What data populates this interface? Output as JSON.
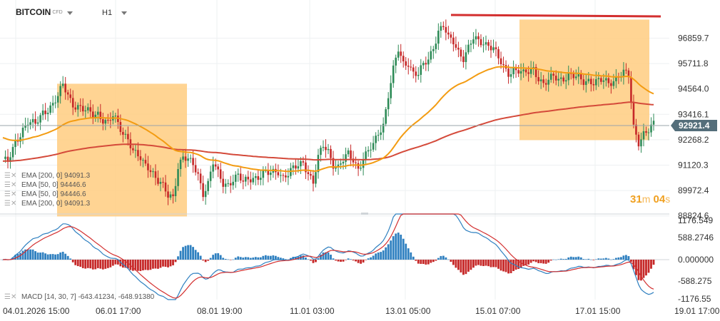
{
  "header": {
    "symbol": "BITCOIN",
    "symbol_tag": "CFD",
    "timeframe": "H1"
  },
  "price_label": "92921.4",
  "countdown": {
    "minutes": "31",
    "minutes_unit": "m",
    "seconds": "04",
    "seconds_unit": "s"
  },
  "colors": {
    "candle_up": "#2e8b57",
    "candle_down": "#c62828",
    "ema50": "#f39c12",
    "ema200": "#d44a3a",
    "zone": "#ffcc80",
    "resistance": "#d32f2f",
    "macd_line": "#2f80c0",
    "signal_line": "#d32f2f",
    "hist_pos": "#2f80c0",
    "hist_neg": "#c62828",
    "price_tag": "#546e7a"
  },
  "legend": [
    {
      "text": "EMA  [200, 0]  94091.3"
    },
    {
      "text": "EMA  [50, 0]  94446.6"
    },
    {
      "text": "EMA  [50, 0]  94446.6"
    },
    {
      "text": "EMA  [200, 0]  94091.3"
    }
  ],
  "macd_legend": "MACD  [14, 30, 7]  -643.41234,  -648.91380",
  "chart_data": [
    {
      "type": "candlestick",
      "title": "",
      "y_ticks": [
        "96859.7",
        "95711.8",
        "94564.0",
        "93416.1",
        "92268.2",
        "91120.3",
        "89972.4",
        "88824.6"
      ],
      "ylim": [
        88824.6,
        97500
      ],
      "x_ticks": [
        "04.01.2026  15:00",
        "06.01  17:00",
        "08.01  19:00",
        "11.01  03:00",
        "13.01  05:00",
        "15.01  07:00",
        "17.01  15:00",
        "19.01  17:00"
      ],
      "current_price": 92921.4,
      "series": [
        {
          "name": "EMA [50, 0]",
          "last": 94446.6
        },
        {
          "name": "EMA [200, 0]",
          "last": 94091.3
        }
      ],
      "resistance_level": 97900,
      "zones": [
        {
          "from": "05.01 04:00",
          "to": "07.01 22:00",
          "top": 94800,
          "bottom": 88800
        },
        {
          "from": "15.01 07:00",
          "to": "18.01 00:00",
          "top": 97700,
          "bottom": 92250
        }
      ],
      "price_path": [
        [
          0,
          91400
        ],
        [
          2,
          91200
        ],
        [
          5,
          92100
        ],
        [
          8,
          92800
        ],
        [
          10,
          93100
        ],
        [
          13,
          92900
        ],
        [
          16,
          93500
        ],
        [
          18,
          93700
        ],
        [
          20,
          93900
        ],
        [
          22,
          94200
        ],
        [
          24,
          94700
        ],
        [
          26,
          94300
        ],
        [
          28,
          93900
        ],
        [
          30,
          93800
        ],
        [
          32,
          93600
        ],
        [
          34,
          93500
        ],
        [
          36,
          93400
        ],
        [
          38,
          93500
        ],
        [
          40,
          93200
        ],
        [
          42,
          93000
        ],
        [
          44,
          93300
        ],
        [
          46,
          93000
        ],
        [
          48,
          92600
        ],
        [
          50,
          92400
        ],
        [
          52,
          91700
        ],
        [
          54,
          91500
        ],
        [
          56,
          91200
        ],
        [
          58,
          91100
        ],
        [
          60,
          90800
        ],
        [
          62,
          90400
        ],
        [
          64,
          90100
        ],
        [
          66,
          89700
        ],
        [
          68,
          89700
        ],
        [
          70,
          91100
        ],
        [
          72,
          91500
        ],
        [
          74,
          91300
        ],
        [
          76,
          91100
        ],
        [
          78,
          90700
        ],
        [
          80,
          89900
        ],
        [
          82,
          90300
        ],
        [
          84,
          91200
        ],
        [
          86,
          90700
        ],
        [
          88,
          90300
        ],
        [
          90,
          90300
        ],
        [
          92,
          90500
        ],
        [
          94,
          90600
        ],
        [
          96,
          90300
        ],
        [
          98,
          90500
        ],
        [
          100,
          90600
        ],
        [
          102,
          90600
        ],
        [
          104,
          90700
        ],
        [
          106,
          90700
        ],
        [
          108,
          90800
        ],
        [
          110,
          90900
        ],
        [
          112,
          90600
        ],
        [
          114,
          90700
        ],
        [
          116,
          90900
        ],
        [
          118,
          91100
        ],
        [
          120,
          91300
        ],
        [
          122,
          90800
        ],
        [
          124,
          90300
        ],
        [
          126,
          91400
        ],
        [
          128,
          92000
        ],
        [
          130,
          91800
        ],
        [
          132,
          91200
        ],
        [
          134,
          91000
        ],
        [
          136,
          91300
        ],
        [
          138,
          91600
        ],
        [
          140,
          91400
        ],
        [
          142,
          91000
        ],
        [
          144,
          91400
        ],
        [
          146,
          91700
        ],
        [
          148,
          92000
        ],
        [
          150,
          92600
        ],
        [
          152,
          93000
        ],
        [
          154,
          94300
        ],
        [
          156,
          95400
        ],
        [
          158,
          96300
        ],
        [
          160,
          95700
        ],
        [
          162,
          95800
        ],
        [
          164,
          95300
        ],
        [
          166,
          95200
        ],
        [
          168,
          95600
        ],
        [
          170,
          95900
        ],
        [
          172,
          96500
        ],
        [
          174,
          97200
        ],
        [
          176,
          97400
        ],
        [
          178,
          96800
        ],
        [
          180,
          96700
        ],
        [
          182,
          96300
        ],
        [
          184,
          96000
        ],
        [
          186,
          96400
        ],
        [
          188,
          96800
        ],
        [
          190,
          96700
        ],
        [
          192,
          96700
        ],
        [
          194,
          96600
        ],
        [
          196,
          96400
        ],
        [
          198,
          95900
        ],
        [
          200,
          95500
        ],
        [
          202,
          95300
        ],
        [
          204,
          95500
        ],
        [
          206,
          95400
        ],
        [
          208,
          95200
        ],
        [
          210,
          95300
        ],
        [
          212,
          95500
        ],
        [
          214,
          95100
        ],
        [
          216,
          94800
        ],
        [
          218,
          94900
        ],
        [
          220,
          95100
        ],
        [
          222,
          95000
        ],
        [
          224,
          95100
        ],
        [
          226,
          95200
        ],
        [
          228,
          95100
        ],
        [
          230,
          95000
        ],
        [
          232,
          94900
        ],
        [
          234,
          95000
        ],
        [
          236,
          94900
        ],
        [
          238,
          94900
        ],
        [
          240,
          94900
        ],
        [
          242,
          94800
        ],
        [
          244,
          95000
        ],
        [
          246,
          95200
        ],
        [
          248,
          95300
        ],
        [
          250,
          95100
        ],
        [
          252,
          92800
        ],
        [
          254,
          92200
        ],
        [
          256,
          92600
        ],
        [
          258,
          92700
        ],
        [
          260,
          92900
        ]
      ]
    },
    {
      "type": "macd",
      "title": "",
      "y_ticks": [
        "1176.549",
        "588.2746",
        "0.000000",
        "-588.275",
        "-1176.55"
      ],
      "ylim": [
        -1176.55,
        1176.549
      ],
      "series": [
        {
          "name": "MACD",
          "last": -643.41234
        },
        {
          "name": "Signal",
          "last": -648.9138
        }
      ]
    }
  ]
}
